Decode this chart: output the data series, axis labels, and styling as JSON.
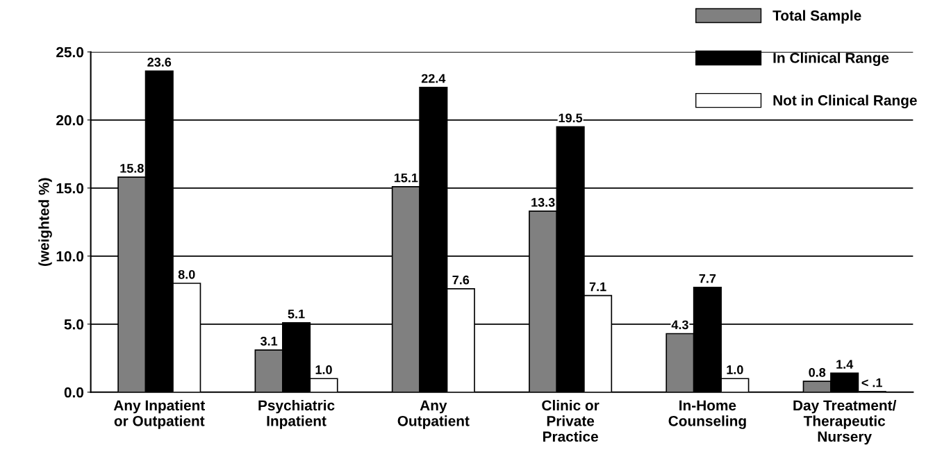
{
  "chart_data": {
    "type": "bar",
    "ylabel": "(weighted %)",
    "categories": [
      "Any Inpatient\nor Outpatient",
      "Psychiatric\nInpatient",
      "Any\nOutpatient",
      "Clinic or\nPrivate\nPractice",
      "In-Home\nCounseling",
      "Day Treatment/\nTherapeutic\nNursery"
    ],
    "series": [
      {
        "name": "Total Sample",
        "color": "#808080",
        "values": [
          15.8,
          3.1,
          15.1,
          13.3,
          4.3,
          0.8
        ],
        "value_labels": [
          "15.8",
          "3.1",
          "15.1",
          "13.3",
          "4.3",
          "0.8"
        ]
      },
      {
        "name": "In Clinical Range",
        "color": "#000000",
        "values": [
          23.6,
          5.1,
          22.4,
          19.5,
          7.7,
          1.4
        ],
        "value_labels": [
          "23.6",
          "5.1",
          "22.4",
          "19.5",
          "7.7",
          "1.4"
        ]
      },
      {
        "name": "Not in Clinical Range",
        "color": "#ffffff",
        "values": [
          8.0,
          1.0,
          7.6,
          7.1,
          1.0,
          0.05
        ],
        "value_labels": [
          "8.0",
          "1.0",
          "7.6",
          "7.1",
          "1.0",
          "< .1"
        ]
      }
    ],
    "ylim": [
      0,
      25
    ],
    "yticks": [
      {
        "value": 0,
        "label": "0.0"
      },
      {
        "value": 5,
        "label": "5.0"
      },
      {
        "value": 10,
        "label": "10.0"
      },
      {
        "value": 15,
        "label": "15.0"
      },
      {
        "value": 20,
        "label": "20.0"
      },
      {
        "value": 25,
        "label": "25.0"
      }
    ],
    "grid": "y",
    "legend": "top right"
  }
}
